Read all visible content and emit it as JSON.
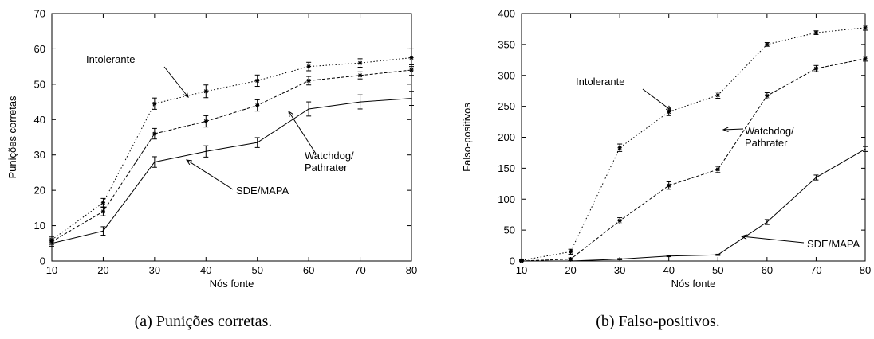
{
  "chart_data": [
    {
      "type": "line",
      "caption": "(a) Punições corretas.",
      "xlabel": "Nós fonte",
      "ylabel": "Punições corretas",
      "xlim": [
        10,
        80
      ],
      "ylim": [
        0,
        70
      ],
      "xticks": [
        "10",
        "20",
        "30",
        "40",
        "50",
        "60",
        "70",
        "80"
      ],
      "yticks": [
        "0",
        "10",
        "20",
        "30",
        "40",
        "50",
        "60",
        "70"
      ],
      "grid": false,
      "legend": "none (series labelled with arrows)",
      "x": [
        10,
        20,
        30,
        40,
        50,
        60,
        70,
        80
      ],
      "series": [
        {
          "name": "Intolerante",
          "style": "dotted",
          "marker": "star",
          "values": [
            6,
            16.5,
            44.5,
            48,
            51,
            55,
            56,
            57.5
          ],
          "err": [
            0.8,
            1.2,
            1.6,
            1.8,
            1.6,
            1.2,
            1.2,
            2.5
          ]
        },
        {
          "name": "Watchdog/\nPathrater",
          "label_lines": [
            "Watchdog/",
            "Pathrater"
          ],
          "style": "dashed",
          "marker": "star",
          "values": [
            5.5,
            14,
            36,
            39.5,
            44,
            51,
            52.5,
            54
          ],
          "err": [
            0.8,
            1.2,
            1.5,
            1.6,
            1.6,
            1.2,
            1.0,
            1.5
          ]
        },
        {
          "name": "SDE/MAPA",
          "style": "solid",
          "marker": "none",
          "values": [
            5,
            8.5,
            28,
            31,
            33.5,
            43,
            45,
            46
          ],
          "err": [
            0.8,
            1.2,
            1.5,
            1.6,
            1.4,
            2.0,
            2.0,
            2.0
          ]
        }
      ],
      "annotations": [
        {
          "text": "Intolerante",
          "series": "Intolerante"
        },
        {
          "text_lines": [
            "Watchdog/",
            "Pathrater"
          ],
          "series": "Watchdog/\nPathrater"
        },
        {
          "text": "SDE/MAPA",
          "series": "SDE/MAPA"
        }
      ]
    },
    {
      "type": "line",
      "caption": "(b) Falso-positivos.",
      "xlabel": "Nós fonte",
      "ylabel": "Falso-positivos",
      "xlim": [
        10,
        80
      ],
      "ylim": [
        0,
        400
      ],
      "xticks": [
        "10",
        "20",
        "30",
        "40",
        "50",
        "60",
        "70",
        "80"
      ],
      "yticks": [
        "0",
        "50",
        "100",
        "150",
        "200",
        "250",
        "300",
        "350",
        "400"
      ],
      "grid": false,
      "legend": "none (series labelled with arrows)",
      "x": [
        10,
        20,
        30,
        40,
        50,
        60,
        70,
        80
      ],
      "series": [
        {
          "name": "Intolerante",
          "style": "dotted",
          "marker": "star",
          "values": [
            1,
            15,
            183,
            241,
            268,
            350,
            369,
            377
          ],
          "err": [
            1,
            4,
            6,
            6,
            5,
            3,
            3,
            4
          ]
        },
        {
          "name": "Watchdog/\nPathrater",
          "label_lines": [
            "Watchdog/",
            "Pathrater"
          ],
          "style": "dashed",
          "marker": "star",
          "values": [
            0,
            3,
            65,
            122,
            148,
            267,
            311,
            327
          ],
          "err": [
            0.5,
            2,
            5,
            6,
            5,
            5,
            5,
            4
          ]
        },
        {
          "name": "SDE/MAPA",
          "style": "solid",
          "marker": "none",
          "values": [
            0,
            0,
            3,
            8,
            10,
            63,
            135,
            181
          ],
          "err": [
            0,
            0,
            1,
            1,
            1,
            4,
            4,
            4
          ]
        }
      ],
      "annotations": [
        {
          "text": "Intolerante",
          "series": "Intolerante"
        },
        {
          "text_lines": [
            "Watchdog/",
            "Pathrater"
          ],
          "series": "Watchdog/\nPathrater"
        },
        {
          "text": "SDE/MAPA",
          "series": "SDE/MAPA"
        }
      ]
    }
  ]
}
